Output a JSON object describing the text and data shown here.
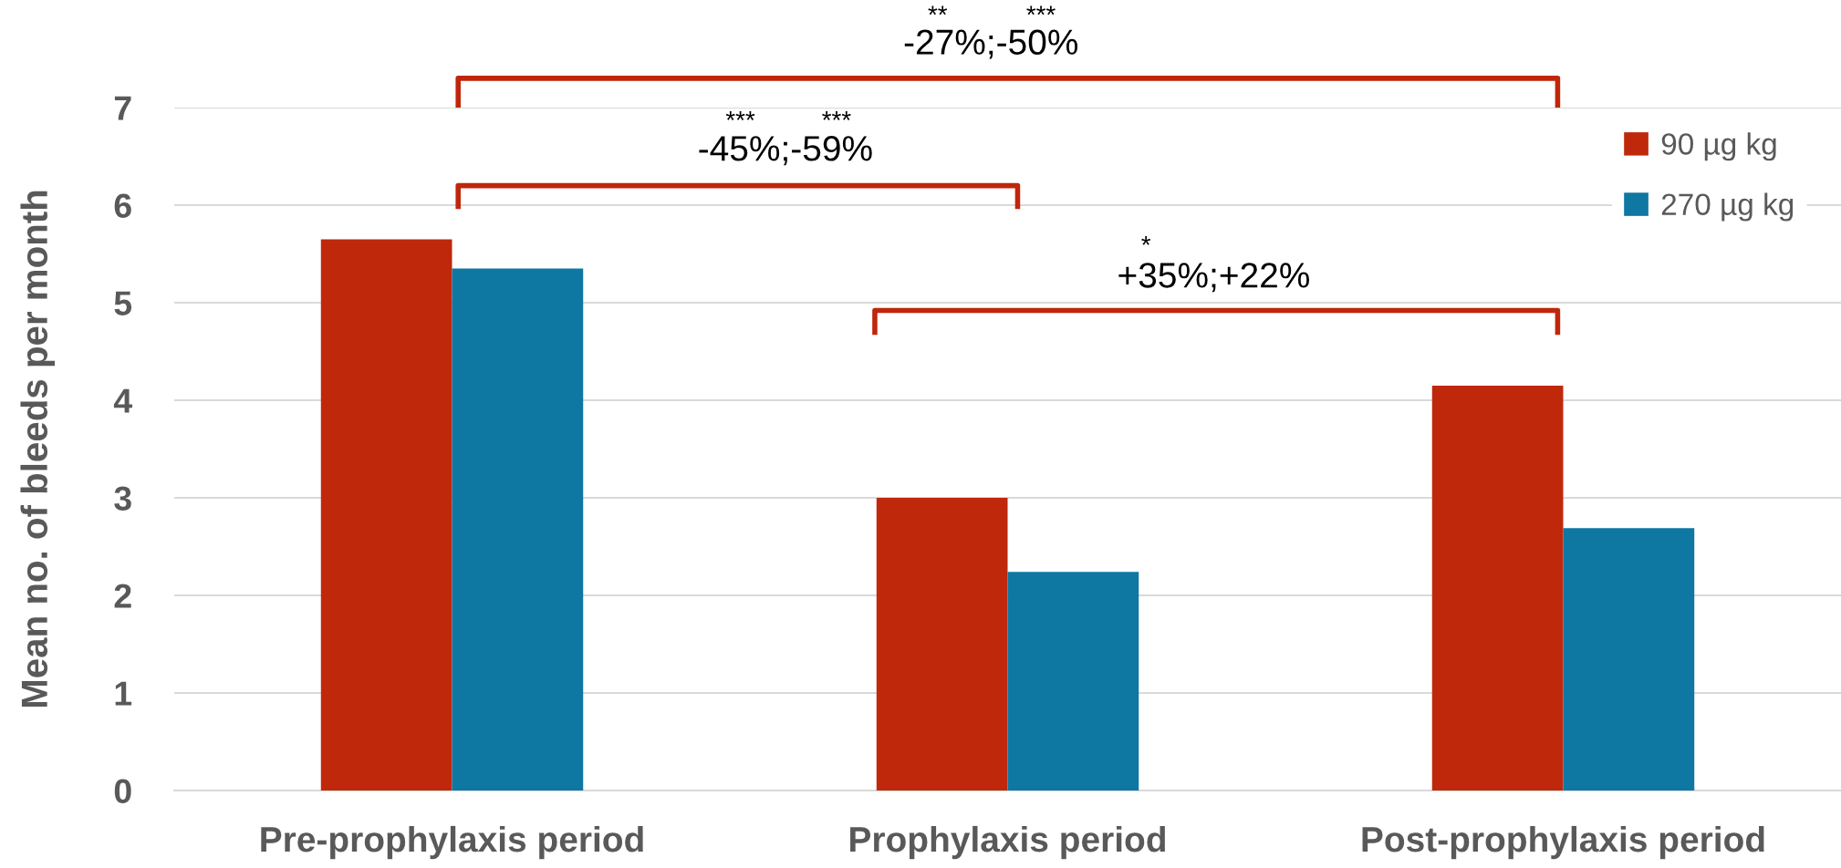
{
  "chart_data": {
    "type": "bar",
    "ylabel": "Mean no. of bleeds per month",
    "categories": [
      "Pre-prophylaxis period",
      "Prophylaxis period",
      "Post-prophylaxis period"
    ],
    "series": [
      {
        "name": "90 µg kg",
        "color": "#c0280c",
        "values": [
          5.65,
          3.0,
          4.15
        ]
      },
      {
        "name": "270 µg kg",
        "color": "#0e77a2",
        "values": [
          5.35,
          2.24,
          2.69
        ]
      }
    ],
    "ylim": [
      0,
      7
    ],
    "yticks": [
      0,
      1,
      2,
      3,
      4,
      5,
      6,
      7
    ],
    "grid": "y",
    "legend": "top right",
    "annotations": [
      "-27%;-50%",
      "**",
      "***",
      "-45%;-59%",
      "***",
      "***",
      "+35%;+22%",
      "*"
    ]
  }
}
